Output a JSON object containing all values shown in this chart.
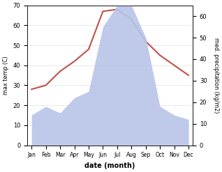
{
  "months": [
    "Jan",
    "Feb",
    "Mar",
    "Apr",
    "May",
    "Jun",
    "Jul",
    "Aug",
    "Sep",
    "Oct",
    "Nov",
    "Dec"
  ],
  "temperature": [
    28,
    30,
    37,
    42,
    48,
    67,
    68,
    63,
    52,
    45,
    40,
    35
  ],
  "precipitation": [
    14,
    18,
    15,
    22,
    25,
    55,
    65,
    65,
    50,
    18,
    14,
    12
  ],
  "temp_color": "#c0504d",
  "precip_color_fill": "#b8c4e8",
  "title": "",
  "xlabel": "date (month)",
  "ylabel_left": "max temp (C)",
  "ylabel_right": "med. precipitation (kg/m2)",
  "ylim_left": [
    0,
    70
  ],
  "ylim_right": [
    0,
    65
  ],
  "yticks_left": [
    0,
    10,
    20,
    30,
    40,
    50,
    60,
    70
  ],
  "yticks_right": [
    0,
    10,
    20,
    30,
    40,
    50,
    60
  ],
  "background_color": "#ffffff"
}
